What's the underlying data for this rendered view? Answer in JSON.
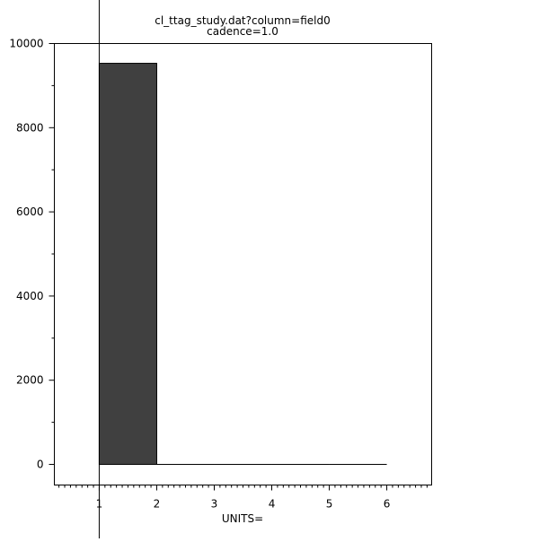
{
  "chart_data": {
    "type": "bar",
    "title": "cl_ttag_study.dat?column=field0",
    "subtitle": "cadence=1.0",
    "xlabel": "UNITS=",
    "ylabel": "",
    "xlim": [
      0.22,
      6.78
    ],
    "ylim": [
      -490,
      10000
    ],
    "xticks": [
      1,
      2,
      3,
      4,
      5,
      6
    ],
    "yticks": [
      0,
      2000,
      4000,
      6000,
      8000,
      10000
    ],
    "bins": [
      {
        "x0": 1,
        "x1": 2,
        "value": 9530
      },
      {
        "x0": 2,
        "x1": 3,
        "value": 0
      },
      {
        "x0": 3,
        "x1": 4,
        "value": 0
      },
      {
        "x0": 4,
        "x1": 5,
        "value": 0
      },
      {
        "x0": 5,
        "x1": 6,
        "value": 0
      }
    ],
    "cursor_x": 1,
    "grid": false,
    "bar_color": "#404040"
  }
}
